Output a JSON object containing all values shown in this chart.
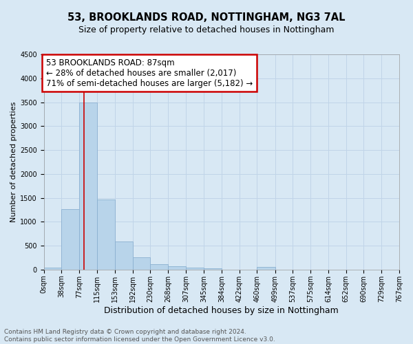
{
  "title1": "53, BROOKLANDS ROAD, NOTTINGHAM, NG3 7AL",
  "title2": "Size of property relative to detached houses in Nottingham",
  "xlabel": "Distribution of detached houses by size in Nottingham",
  "ylabel": "Number of detached properties",
  "footer1": "Contains HM Land Registry data © Crown copyright and database right 2024.",
  "footer2": "Contains public sector information licensed under the Open Government Licence v3.0.",
  "annotation_line1": "53 BROOKLANDS ROAD: 87sqm",
  "annotation_line2": "← 28% of detached houses are smaller (2,017)",
  "annotation_line3": "71% of semi-detached houses are larger (5,182) →",
  "property_size": 87,
  "bar_color": "#b8d4ea",
  "bar_edge_color": "#8ab0d0",
  "annotation_box_color": "#cc0000",
  "vline_color": "#cc0000",
  "grid_color": "#c0d4e8",
  "background_color": "#d8e8f4",
  "plot_bg_color": "#d8e8f4",
  "bin_edges": [
    0,
    38,
    77,
    115,
    153,
    192,
    230,
    268,
    307,
    345,
    384,
    422,
    460,
    499,
    537,
    575,
    614,
    652,
    690,
    729,
    767
  ],
  "bar_heights": [
    40,
    1270,
    3500,
    1470,
    580,
    250,
    110,
    70,
    40,
    20,
    0,
    0,
    50,
    0,
    0,
    0,
    0,
    0,
    0,
    0
  ],
  "ylim": [
    0,
    4500
  ],
  "yticks": [
    0,
    500,
    1000,
    1500,
    2000,
    2500,
    3000,
    3500,
    4000,
    4500
  ],
  "title1_fontsize": 10.5,
  "title2_fontsize": 9,
  "xlabel_fontsize": 9,
  "ylabel_fontsize": 8,
  "tick_fontsize": 7,
  "footer_fontsize": 6.5,
  "annotation_fontsize": 8.5
}
